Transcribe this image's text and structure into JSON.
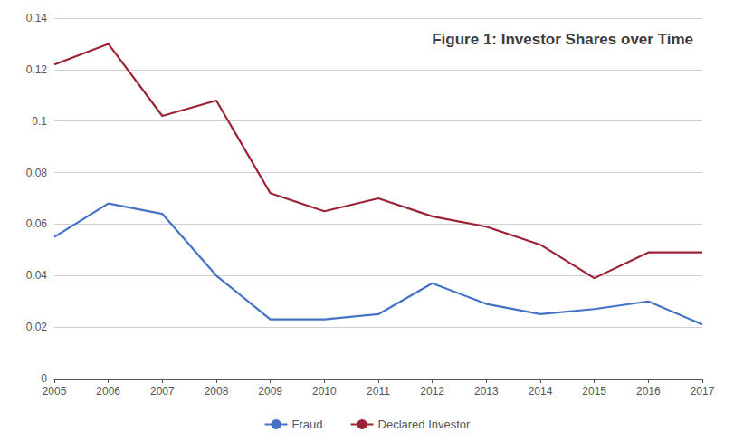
{
  "chart_data": {
    "type": "line",
    "title": "Figure 1: Investor Shares over Time",
    "x": [
      2005,
      2006,
      2007,
      2008,
      2009,
      2010,
      2011,
      2012,
      2013,
      2014,
      2015,
      2016,
      2017
    ],
    "series": [
      {
        "name": "Fraud",
        "color": "#4472C4",
        "values": [
          0.055,
          0.068,
          0.064,
          0.04,
          0.023,
          0.023,
          0.025,
          0.037,
          0.029,
          0.025,
          0.027,
          0.03,
          0.021
        ]
      },
      {
        "name": "Declared Investor",
        "color": "#9B2335",
        "values": [
          0.122,
          0.13,
          0.102,
          0.108,
          0.072,
          0.065,
          0.07,
          0.063,
          0.059,
          0.052,
          0.039,
          0.049,
          0.049
        ]
      }
    ],
    "xlim": [
      2005,
      2017
    ],
    "xticks": [
      2005,
      2006,
      2007,
      2008,
      2009,
      2010,
      2011,
      2012,
      2013,
      2014,
      2015,
      2016,
      2017
    ],
    "ylim": [
      0,
      0.14
    ],
    "yticks": [
      0,
      0.02,
      0.04,
      0.06,
      0.08,
      0.1,
      0.12,
      0.14
    ],
    "grid": true,
    "legend": "bottom"
  }
}
